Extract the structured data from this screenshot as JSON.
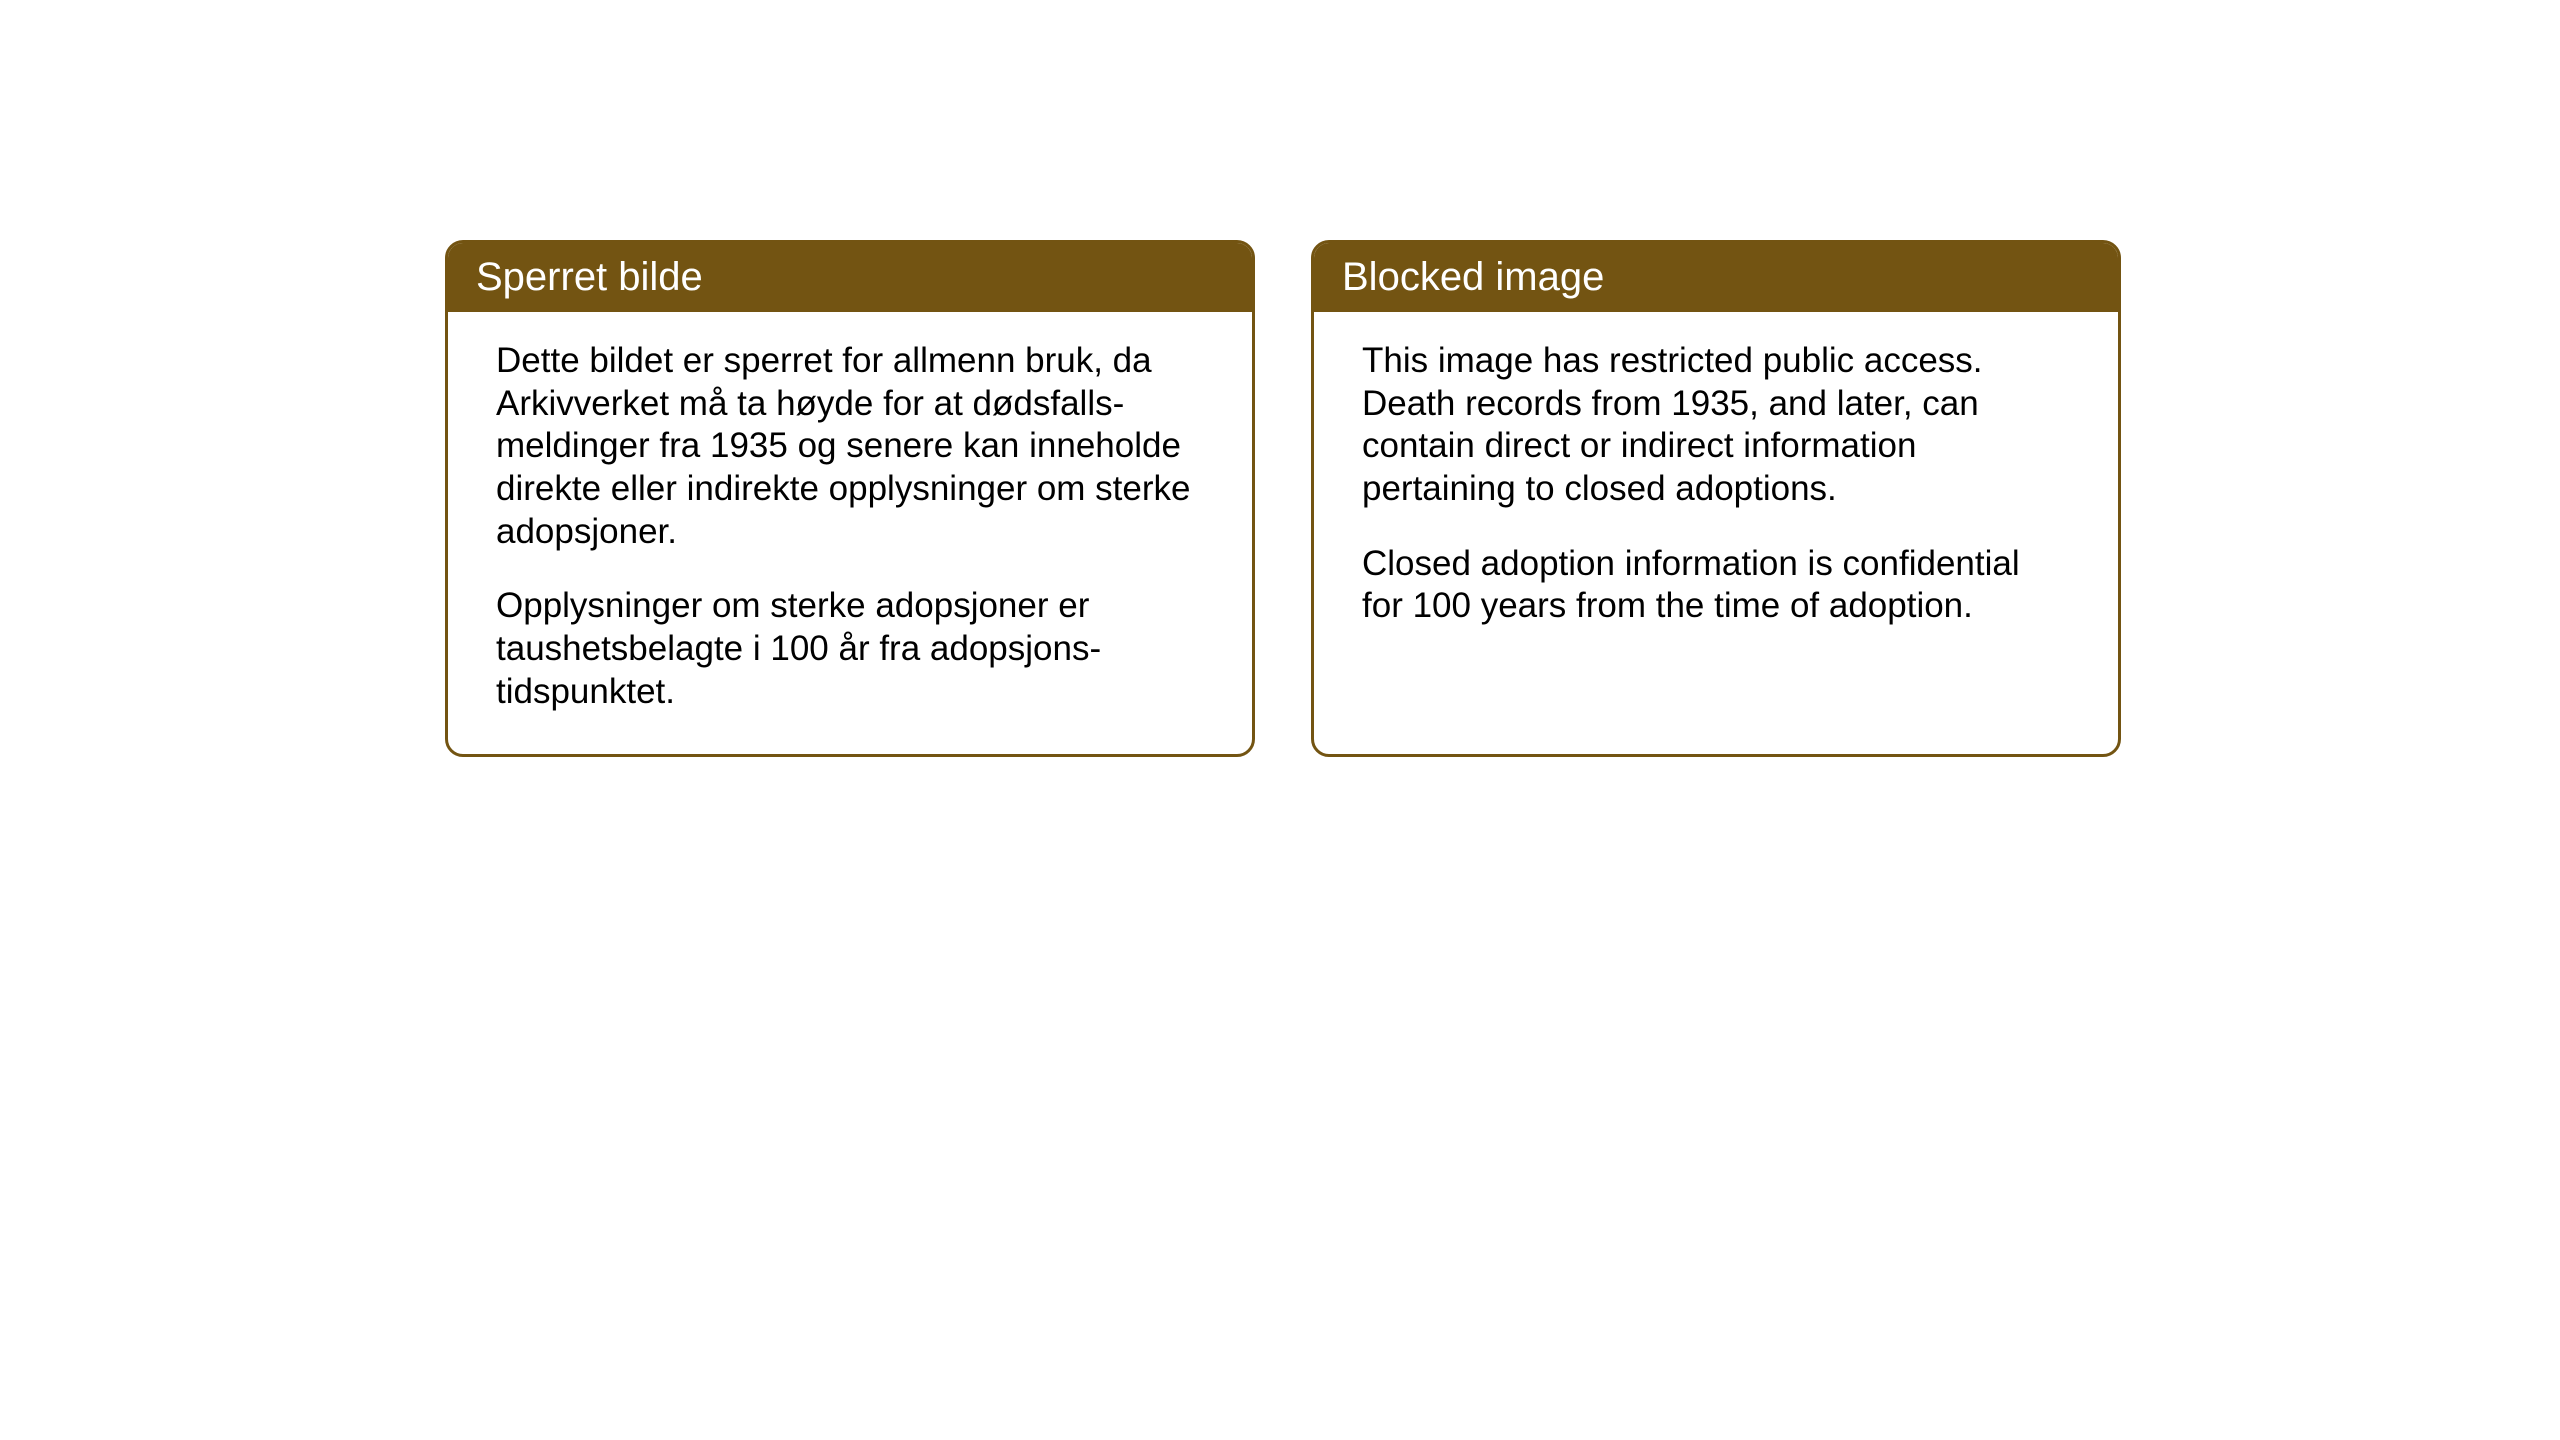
{
  "cards": {
    "norwegian": {
      "title": "Sperret bilde",
      "paragraph1": "Dette bildet er sperret for allmenn bruk, da Arkivverket må ta høyde for at dødsfalls-meldinger fra 1935 og senere kan inneholde direkte eller indirekte opplysninger om sterke adopsjoner.",
      "paragraph2": "Opplysninger om sterke adopsjoner er taushetsbelagte i 100 år fra adopsjons-tidspunktet."
    },
    "english": {
      "title": "Blocked image",
      "paragraph1": "This image has restricted public access. Death records from 1935, and later, can contain direct or indirect information pertaining to closed adoptions.",
      "paragraph2": "Closed adoption information is confidential for 100 years from the time of adoption."
    }
  },
  "styling": {
    "header_bg_color": "#735412",
    "header_text_color": "#ffffff",
    "border_color": "#735412",
    "card_bg_color": "#ffffff",
    "body_text_color": "#000000",
    "page_bg_color": "#ffffff",
    "title_fontsize": 40,
    "body_fontsize": 35,
    "border_radius": 18,
    "border_width": 3
  }
}
